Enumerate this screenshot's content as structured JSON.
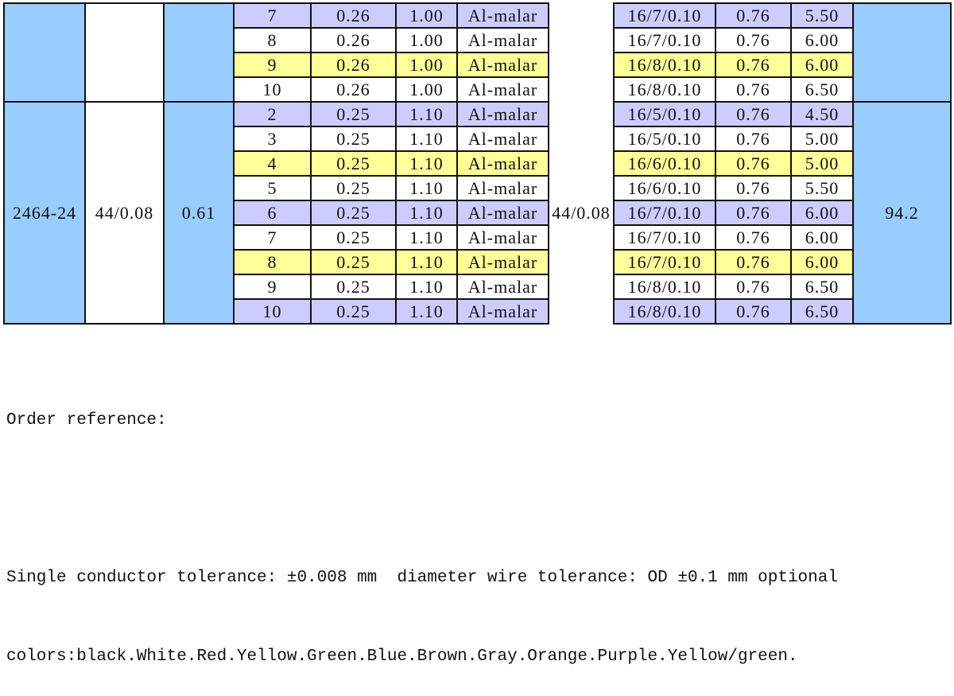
{
  "table": {
    "groups": [
      {
        "rows": [
          {
            "fill": "#ccccff",
            "cells": [
              "7",
              "0.26",
              "1.00",
              "Al-malar",
              "16/7/0.10",
              "0.76",
              "5.50"
            ]
          },
          {
            "fill": "#ffffff",
            "cells": [
              "8",
              "0.26",
              "1.00",
              "Al-malar",
              "16/7/0.10",
              "0.76",
              "6.00"
            ]
          },
          {
            "fill": "#ffff99",
            "cells": [
              "9",
              "0.26",
              "1.00",
              "Al-malar",
              "16/8/0.10",
              "0.76",
              "6.00"
            ]
          },
          {
            "fill": "#ffffff",
            "cells": [
              "10",
              "0.26",
              "1.00",
              "Al-malar",
              "16/8/0.10",
              "0.76",
              "6.50"
            ]
          }
        ]
      },
      {
        "type": "2464-24",
        "conductor": "44/0.08",
        "insulation": "0.61",
        "shield": "44/0.08",
        "od": "94.2",
        "rows": [
          {
            "fill": "#ccccff",
            "cells": [
              "2",
              "0.25",
              "1.10",
              "Al-malar",
              "16/5/0.10",
              "0.76",
              "4.50"
            ]
          },
          {
            "fill": "#ffffff",
            "cells": [
              "3",
              "0.25",
              "1.10",
              "Al-malar",
              "16/5/0.10",
              "0.76",
              "5.00"
            ]
          },
          {
            "fill": "#ffff99",
            "cells": [
              "4",
              "0.25",
              "1.10",
              "Al-malar",
              "16/6/0.10",
              "0.76",
              "5.00"
            ]
          },
          {
            "fill": "#ffffff",
            "cells": [
              "5",
              "0.25",
              "1.10",
              "Al-malar",
              "16/6/0.10",
              "0.76",
              "5.50"
            ]
          },
          {
            "fill": "#ccccff",
            "cells": [
              "6",
              "0.25",
              "1.10",
              "Al-malar",
              "16/7/0.10",
              "0.76",
              "6.00"
            ]
          },
          {
            "fill": "#ffffff",
            "cells": [
              "7",
              "0.25",
              "1.10",
              "Al-malar",
              "16/7/0.10",
              "0.76",
              "6.00"
            ]
          },
          {
            "fill": "#ffff99",
            "cells": [
              "8",
              "0.25",
              "1.10",
              "Al-malar",
              "16/7/0.10",
              "0.76",
              "6.00"
            ]
          },
          {
            "fill": "#ffffff",
            "cells": [
              "9",
              "0.25",
              "1.10",
              "Al-malar",
              "16/8/0.10",
              "0.76",
              "6.50"
            ]
          },
          {
            "fill": "#ccccff",
            "cells": [
              "10",
              "0.25",
              "1.10",
              "Al-malar",
              "16/8/0.10",
              "0.76",
              "6.50"
            ]
          }
        ]
      }
    ]
  },
  "notes": {
    "lines": [
      "Order reference:",
      "Single conductor tolerance: ±0.008 mm  diameter wire tolerance: OD ±0.1 mm optional",
      "colors:black.White.Red.Yellow.Green.Blue.Brown.Gray.Orange.Purple.Yellow/green."
    ]
  }
}
